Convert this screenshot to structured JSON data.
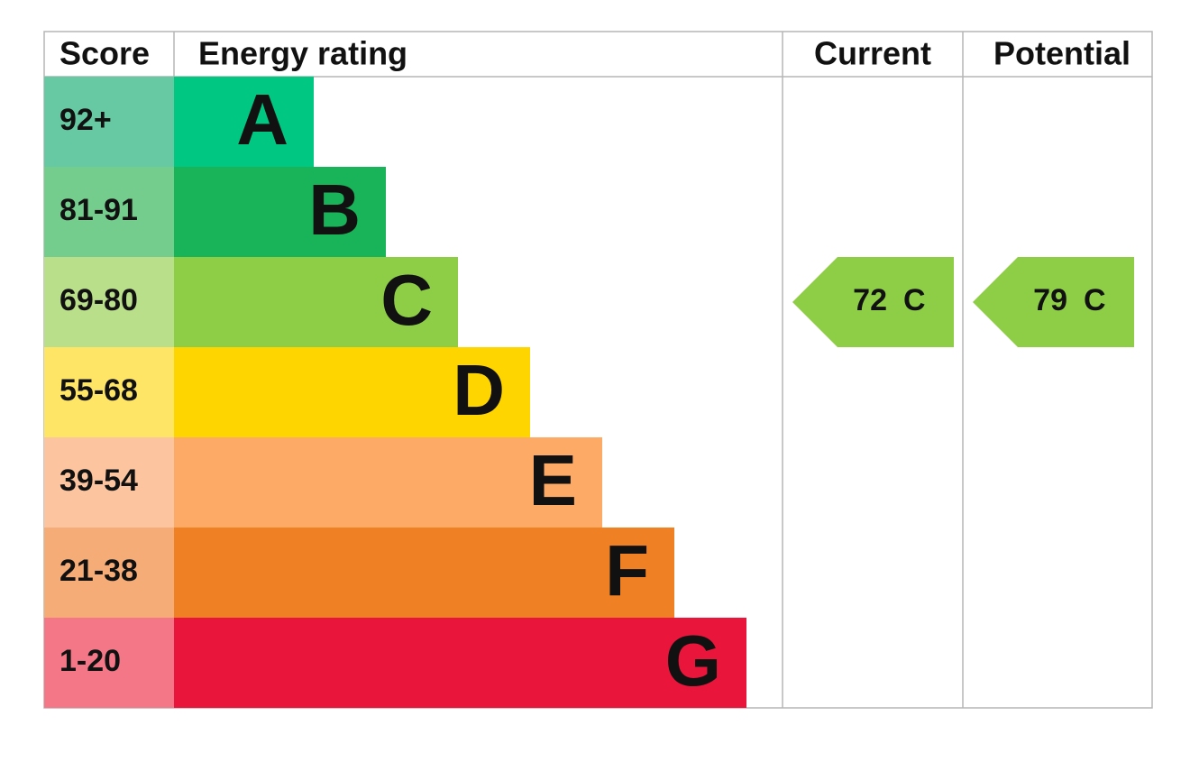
{
  "header": {
    "score": "Score",
    "rating": "Energy rating",
    "current": "Current",
    "potential": "Potential"
  },
  "rows": [
    {
      "score": "92+",
      "letter": "A",
      "score_color": "#66c9a3",
      "bar_color": "#00c781"
    },
    {
      "score": "81-91",
      "letter": "B",
      "score_color": "#74cd8c",
      "bar_color": "#19b459"
    },
    {
      "score": "69-80",
      "letter": "C",
      "score_color": "#badf8b",
      "bar_color": "#8dce46"
    },
    {
      "score": "55-68",
      "letter": "D",
      "score_color": "#ffe566",
      "bar_color": "#ffd500"
    },
    {
      "score": "39-54",
      "letter": "E",
      "score_color": "#fdc59f",
      "bar_color": "#fcaa65"
    },
    {
      "score": "21-38",
      "letter": "F",
      "score_color": "#f5ac77",
      "bar_color": "#ef8023"
    },
    {
      "score": "1-20",
      "letter": "G",
      "score_color": "#f37787",
      "bar_color": "#e9153b"
    }
  ],
  "current": {
    "score": 72,
    "band": "C"
  },
  "potential": {
    "score": 79,
    "band": "C"
  }
}
